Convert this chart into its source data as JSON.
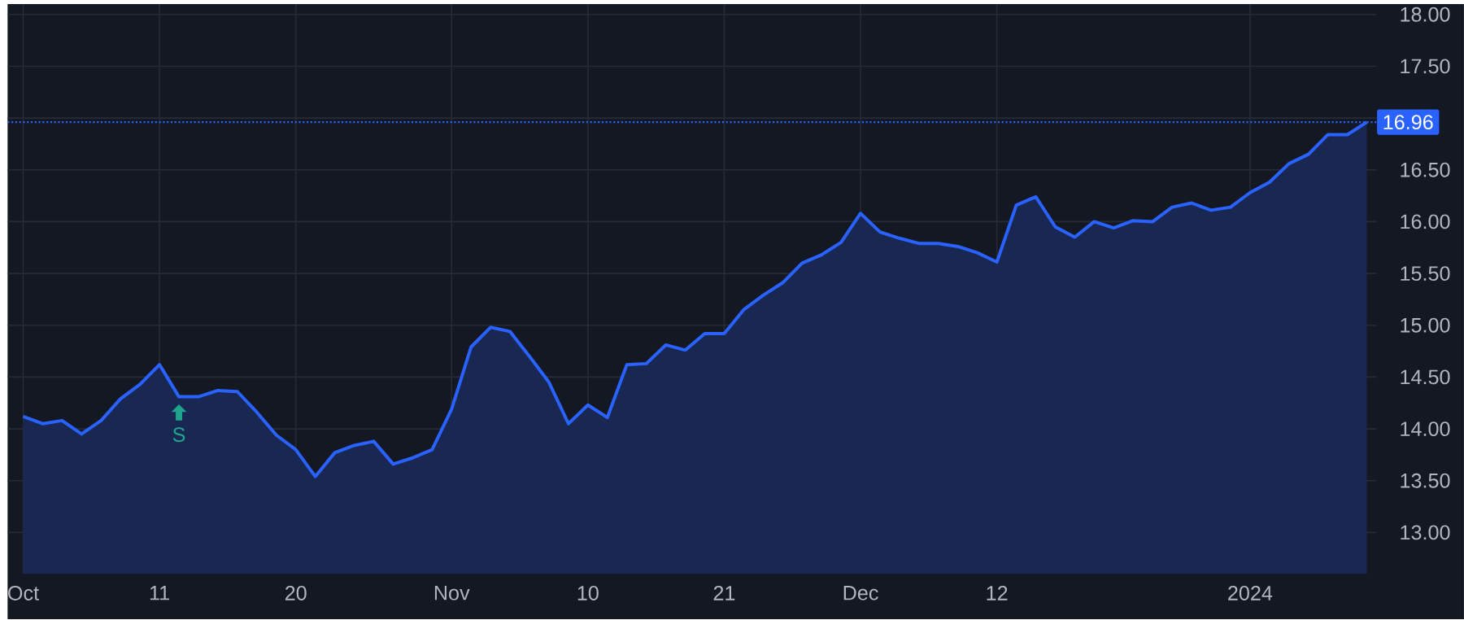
{
  "chart_data": {
    "type": "area",
    "categories": [
      "Oct",
      null,
      null,
      null,
      null,
      null,
      null,
      "11",
      null,
      null,
      null,
      null,
      null,
      null,
      "20",
      null,
      null,
      null,
      null,
      null,
      null,
      null,
      "Nov",
      null,
      null,
      null,
      null,
      null,
      null,
      "10",
      null,
      null,
      null,
      null,
      null,
      null,
      "21",
      null,
      null,
      null,
      null,
      null,
      null,
      "Dec",
      null,
      null,
      null,
      null,
      null,
      null,
      "12",
      null,
      null,
      null,
      null,
      null,
      null,
      null,
      null,
      null,
      null,
      null,
      null,
      "2024",
      null,
      null,
      null,
      null,
      null,
      null
    ],
    "series": [
      {
        "color": "#2962ff",
        "values": [
          14.12,
          14.05,
          14.08,
          13.95,
          14.08,
          14.29,
          14.43,
          14.62,
          14.31,
          14.31,
          14.37,
          14.36,
          14.16,
          13.94,
          13.8,
          13.54,
          13.77,
          13.84,
          13.88,
          13.66,
          13.72,
          13.8,
          14.19,
          14.79,
          14.98,
          14.94,
          14.7,
          14.45,
          14.05,
          14.23,
          14.11,
          14.62,
          14.63,
          14.81,
          14.76,
          14.92,
          14.92,
          15.15,
          15.29,
          15.41,
          15.6,
          15.68,
          15.8,
          16.08,
          15.9,
          15.84,
          15.79,
          15.79,
          15.76,
          15.7,
          15.61,
          16.16,
          16.24,
          15.95,
          15.85,
          16.0,
          15.94,
          16.01,
          16.0,
          16.14,
          16.18,
          16.11,
          16.14,
          16.28,
          16.38,
          16.56,
          16.65,
          16.84,
          16.84,
          16.96
        ]
      }
    ],
    "ylim": [
      12.6,
      18.1
    ],
    "yticks": [
      {
        "value": 13,
        "label": "13.00"
      },
      {
        "value": 13.5,
        "label": "13.50"
      },
      {
        "value": 14,
        "label": "14.00"
      },
      {
        "value": 14.5,
        "label": "14.50"
      },
      {
        "value": 15,
        "label": "15.00"
      },
      {
        "value": 15.5,
        "label": "15.50"
      },
      {
        "value": 16,
        "label": "16.00"
      },
      {
        "value": 16.5,
        "label": "16.50"
      },
      {
        "value": 17,
        "label": null
      },
      {
        "value": 17.5,
        "label": "17.50"
      },
      {
        "value": 18,
        "label": "18.00"
      }
    ],
    "grid": true,
    "ref_lines": [
      {
        "axis": "y",
        "value": 16.96,
        "label": "16.96",
        "color": "#2962ff",
        "line_style": "dotted"
      }
    ],
    "annotations": [
      {
        "text": "S",
        "y": 14.31
      }
    ]
  }
}
